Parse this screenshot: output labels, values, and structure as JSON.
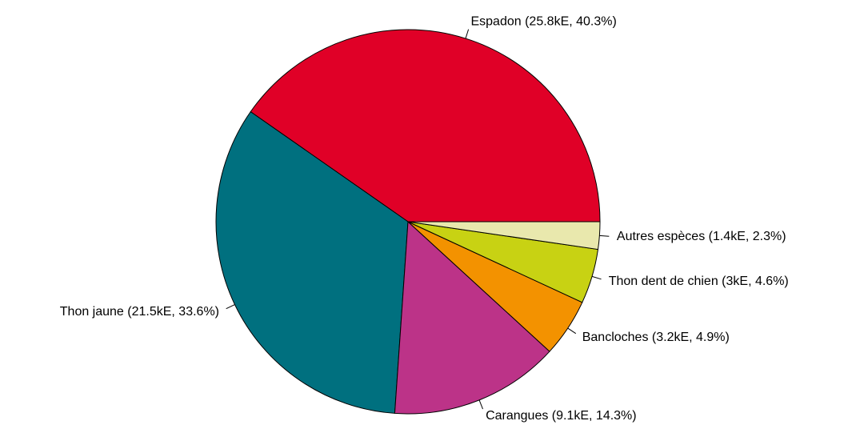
{
  "chart_data": {
    "type": "pie",
    "categories": [
      "Espadon (25.8kE, 40.3%)",
      "Thon jaune (21.5kE, 33.6%)",
      "Carangues (9.1kE, 14.3%)",
      "Bancloches (3.2kE, 4.9%)",
      "Thon dent de chien (3kE, 4.6%)",
      "Autres espèces (1.4kE, 2.3%)"
    ],
    "values": [
      40.3,
      33.6,
      14.3,
      4.9,
      4.6,
      2.3
    ],
    "colors": [
      "#e00027",
      "#00707f",
      "#bc3388",
      "#f39200",
      "#c8d213",
      "#e9e8ad"
    ]
  }
}
